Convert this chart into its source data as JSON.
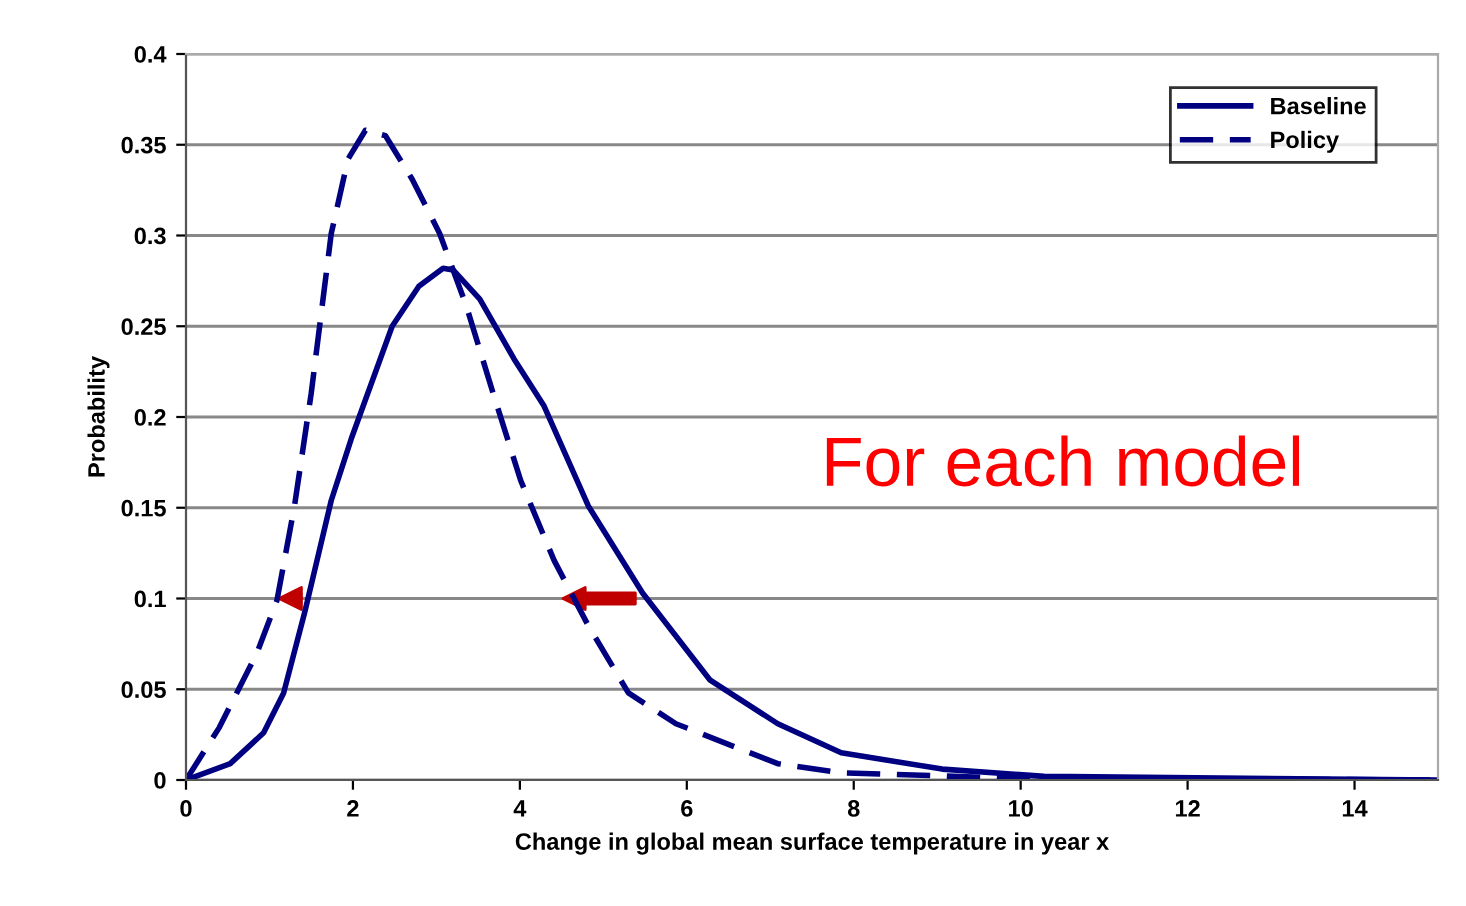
{
  "chart_data": {
    "type": "line",
    "xlabel": "Change in global mean surface temperature in year x",
    "ylabel": "Probability",
    "annotations": [
      "For each model"
    ],
    "series": [
      {
        "name": "Baseline",
        "color": "#000080",
        "line_style": "solid",
        "x": [
          0,
          0.53,
          0.93,
          1.17,
          1.42,
          1.74,
          1.98,
          2.47,
          2.79,
          3.08,
          3.2,
          3.52,
          3.93,
          4.29,
          4.82,
          5.47,
          6.28,
          7.09,
          7.85,
          9.06,
          10.28,
          12.7,
          15
        ],
        "values": [
          0,
          0.009,
          0.026,
          0.048,
          0.092,
          0.154,
          0.188,
          0.25,
          0.272,
          0.282,
          0.281,
          0.265,
          0.232,
          0.206,
          0.151,
          0.103,
          0.055,
          0.031,
          0.015,
          0.006,
          0.002,
          0.001,
          0
        ]
      },
      {
        "name": "Policy",
        "color": "#000080",
        "line_style": "dashed",
        "x": [
          0,
          0.4,
          0.85,
          1.09,
          1.3,
          1.5,
          1.74,
          1.94,
          2.15,
          2.39,
          2.71,
          3.04,
          3.36,
          3.68,
          4.01,
          4.41,
          4.82,
          5.3,
          5.87,
          7.09,
          7.85,
          9.9,
          15
        ],
        "values": [
          0,
          0.029,
          0.07,
          0.099,
          0.151,
          0.213,
          0.301,
          0.342,
          0.358,
          0.355,
          0.331,
          0.301,
          0.261,
          0.213,
          0.165,
          0.121,
          0.085,
          0.048,
          0.031,
          0.009,
          0.004,
          0.001,
          0
        ]
      }
    ],
    "xlim": [
      0,
      15
    ],
    "xticks": [
      0,
      2,
      4,
      6,
      8,
      10,
      12,
      14
    ],
    "ylim": [
      0,
      0.4
    ],
    "yticks": [
      0,
      0.05,
      0.1,
      0.15,
      0.2,
      0.25,
      0.3,
      0.35,
      0.4
    ],
    "grid": "y",
    "legend": "top right",
    "marker": "none"
  }
}
